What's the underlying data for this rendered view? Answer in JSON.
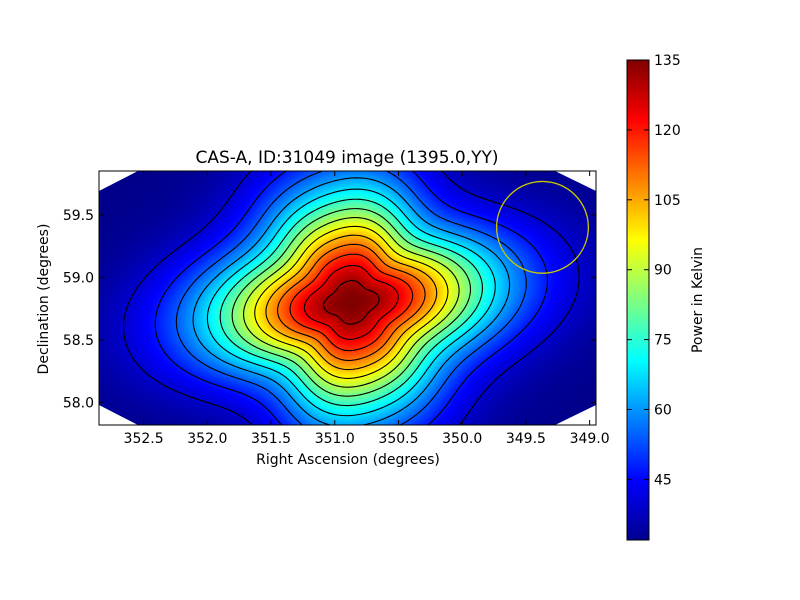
{
  "chart_data": {
    "type": "heatmap",
    "title": "CAS-A, ID:31049 image (1395.0,YY)",
    "xlabel": "Right Ascension (degrees)",
    "ylabel": "Declination (degrees)",
    "x_reversed": true,
    "xlim": [
      352.85,
      348.95
    ],
    "ylim": [
      57.82,
      59.85
    ],
    "x_ticks": [
      352.5,
      352.0,
      351.5,
      351.0,
      350.5,
      350.0,
      349.5,
      349.0
    ],
    "x_tick_labels": [
      "352.5",
      "352.0",
      "351.5",
      "351.0",
      "350.5",
      "350.0",
      "349.5",
      "349.0"
    ],
    "y_ticks": [
      58.0,
      58.5,
      59.0,
      59.5
    ],
    "y_tick_labels": [
      "58.0",
      "58.5",
      "59.0",
      "59.5"
    ],
    "colormap": "jet",
    "colorbar": {
      "label": "Power in Kelvin",
      "range": [
        32,
        135
      ],
      "ticks": [
        45,
        60,
        75,
        90,
        105,
        120,
        135
      ],
      "tick_labels": [
        "45",
        "60",
        "75",
        "90",
        "105",
        "120",
        "135"
      ]
    },
    "peak": {
      "ra": 350.87,
      "dec": 58.8,
      "value": 135
    },
    "background_value": 33,
    "contour_levels": [
      40,
      47,
      54,
      61,
      68,
      75,
      82,
      89,
      96,
      103,
      110,
      117,
      124,
      131
    ],
    "beam_circle": {
      "ra": 349.37,
      "dec": 59.4,
      "radius_deg": 0.36,
      "color": "#c8c800"
    },
    "grid": false,
    "legend": "none"
  }
}
